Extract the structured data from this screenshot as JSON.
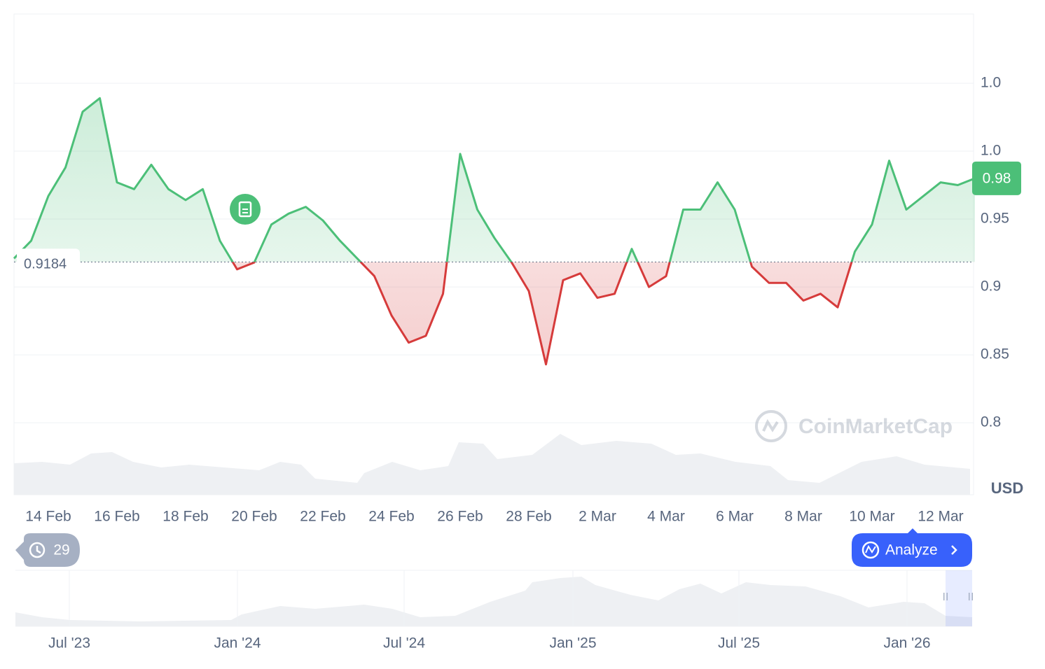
{
  "chart_data": {
    "type": "line",
    "currency": "USD",
    "watermark": "CoinMarketCap",
    "baseline": 0.9184,
    "x": [
      0,
      0.5,
      1,
      1.5,
      2,
      2.5,
      3,
      3.5,
      4,
      4.5,
      5,
      5.5,
      6,
      6.5,
      7,
      7.5,
      8,
      8.5,
      9,
      9.5,
      10,
      10.5,
      11,
      11.5,
      12,
      12.5,
      13,
      13.5,
      14,
      14.5,
      15,
      15.5,
      16,
      16.5,
      17,
      17.5,
      18,
      18.5,
      19,
      19.5,
      20,
      20.5,
      21,
      21.5,
      22,
      22.5,
      23,
      23.5,
      24,
      24.5,
      25,
      25.5,
      26,
      26.5,
      27,
      27.5,
      28
    ],
    "series": [
      {
        "color_up": "#4cbf78",
        "color_down": "#d63b3b",
        "values": [
          0.921,
          0.934,
          0.967,
          0.988,
          1.029,
          1.039,
          0.977,
          0.972,
          0.99,
          0.972,
          0.964,
          0.972,
          0.934,
          0.913,
          0.918,
          0.946,
          0.954,
          0.959,
          0.949,
          0.934,
          0.921,
          0.908,
          0.879,
          0.859,
          0.864,
          0.895,
          0.998,
          0.957,
          0.936,
          0.918,
          0.897,
          0.843,
          0.905,
          0.91,
          0.892,
          0.895,
          0.928,
          0.9,
          0.908,
          0.957,
          0.957,
          0.977,
          0.957,
          0.915,
          0.903,
          0.903,
          0.89,
          0.895,
          0.885,
          0.926,
          0.946,
          0.993,
          0.957,
          0.967,
          0.977,
          0.975,
          0.98
        ]
      }
    ],
    "xlim": [
      0,
      28
    ],
    "xticks": [
      {
        "value": 1,
        "label": "14 Feb"
      },
      {
        "value": 3,
        "label": "16 Feb"
      },
      {
        "value": 5,
        "label": "18 Feb"
      },
      {
        "value": 7,
        "label": "20 Feb"
      },
      {
        "value": 9,
        "label": "22 Feb"
      },
      {
        "value": 11,
        "label": "24 Feb"
      },
      {
        "value": 13,
        "label": "26 Feb"
      },
      {
        "value": 15,
        "label": "28 Feb"
      },
      {
        "value": 17,
        "label": "2 Mar"
      },
      {
        "value": 19,
        "label": "4 Mar"
      },
      {
        "value": 21,
        "label": "6 Mar"
      },
      {
        "value": 23,
        "label": "8 Mar"
      },
      {
        "value": 25,
        "label": "10 Mar"
      },
      {
        "value": 27,
        "label": "12 Mar"
      }
    ],
    "ylim": [
      0.747,
      1.101
    ],
    "yticks": [
      0.8,
      0.85,
      0.9,
      0.95,
      {
        "value": 1.0,
        "label": "1.0"
      },
      {
        "value": 1.05,
        "label": "1.0"
      }
    ],
    "grid": true,
    "history_count": 29,
    "analyze_button": "Analyze",
    "navigator_labels": [
      "Jul '23",
      "Jan '24",
      "Jul '24",
      "Jan '25",
      "Jul '25",
      "Jan '26"
    ]
  }
}
